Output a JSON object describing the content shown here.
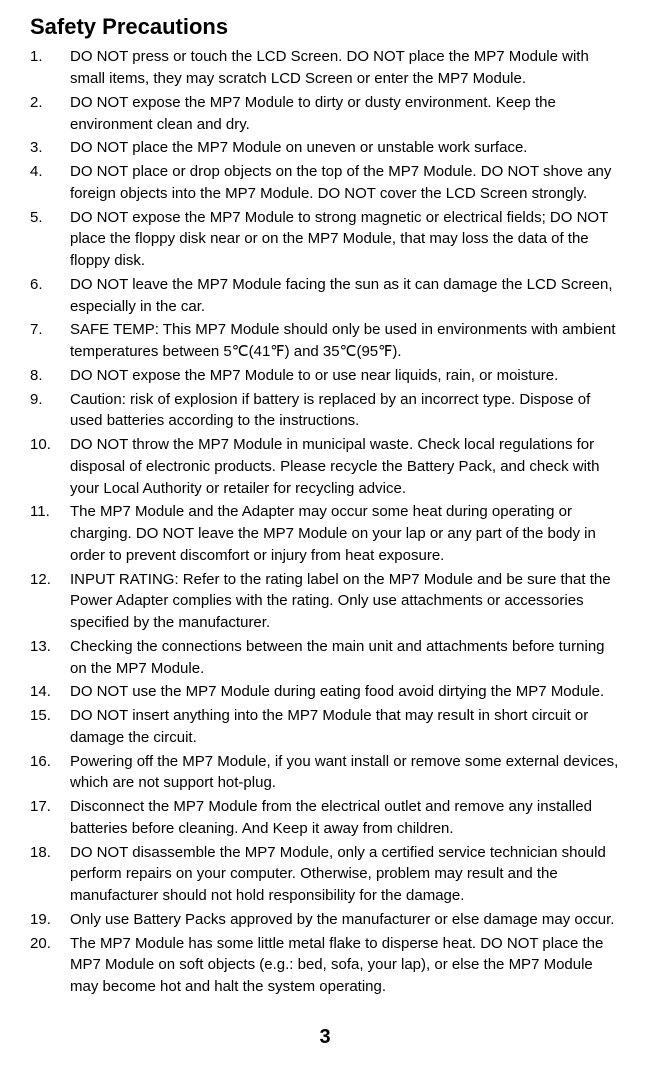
{
  "title": "Safety Precautions",
  "items": [
    "DO NOT press or touch the LCD Screen. DO NOT place the MP7 Module with small items, they may scratch LCD Screen or enter the MP7 Module.",
    "DO NOT expose the MP7 Module to dirty or dusty environment. Keep the environment clean and dry.",
    "DO NOT place the MP7 Module on uneven or unstable work surface.",
    "DO NOT place or drop objects on the top of the MP7 Module. DO NOT shove any foreign objects into the MP7 Module. DO NOT cover the LCD Screen strongly.",
    "DO NOT expose the MP7 Module to strong magnetic or electrical fields; DO NOT place the floppy disk near or on the MP7 Module, that may loss the data of the floppy disk.",
    "DO NOT leave the MP7 Module facing the sun as it can damage the LCD Screen, especially in the car.",
    "SAFE TEMP: This MP7 Module should only be used in environments with ambient temperatures between 5℃(41℉) and 35℃(95℉).",
    "DO NOT expose the MP7 Module to or use near liquids, rain, or moisture.",
    "Caution: risk of explosion if battery is replaced by an incorrect type. Dispose of used batteries according to the instructions.",
    "DO NOT throw the MP7 Module in municipal waste. Check local regulations for disposal of electronic products. Please recycle the Battery Pack, and check with your Local Authority or retailer for recycling advice.",
    "The MP7 Module and the Adapter may occur some heat during operating or charging. DO NOT leave the MP7 Module on your lap or any part of the body in order to prevent discomfort or injury from heat exposure.",
    "INPUT RATING: Refer to the rating label on the MP7 Module and be sure that the Power Adapter complies with the rating. Only use attachments or accessories specified by the manufacturer.",
    "Checking the connections between the main unit and attachments before turning on the MP7 Module.",
    "DO NOT use the MP7 Module during eating food avoid dirtying the MP7 Module.",
    "DO NOT insert anything into the MP7 Module that may result in short circuit or damage the circuit.",
    "Powering off the MP7 Module, if you want install or remove some external devices, which are not support hot-plug.",
    "Disconnect the MP7 Module from the electrical outlet and remove any installed batteries before cleaning. And Keep it away from children.",
    "DO NOT disassemble the MP7 Module, only a certified service technician should perform repairs on your computer. Otherwise, problem may result and the manufacturer should not hold responsibility for the damage.",
    "Only use Battery Packs approved by the manufacturer or else damage may occur.",
    "The MP7 Module has some little metal flake to disperse heat. DO NOT place the MP7 Module on soft objects (e.g.: bed, sofa, your lap), or else the MP7 Module may become hot and halt the system operating."
  ],
  "pageNumber": "3",
  "style": {
    "bodyFont": "Arial",
    "titleFontSizePx": 22,
    "itemFontSizePx": 15,
    "lineHeight": 1.45,
    "textColor": "#000000",
    "backgroundColor": "#ffffff"
  }
}
